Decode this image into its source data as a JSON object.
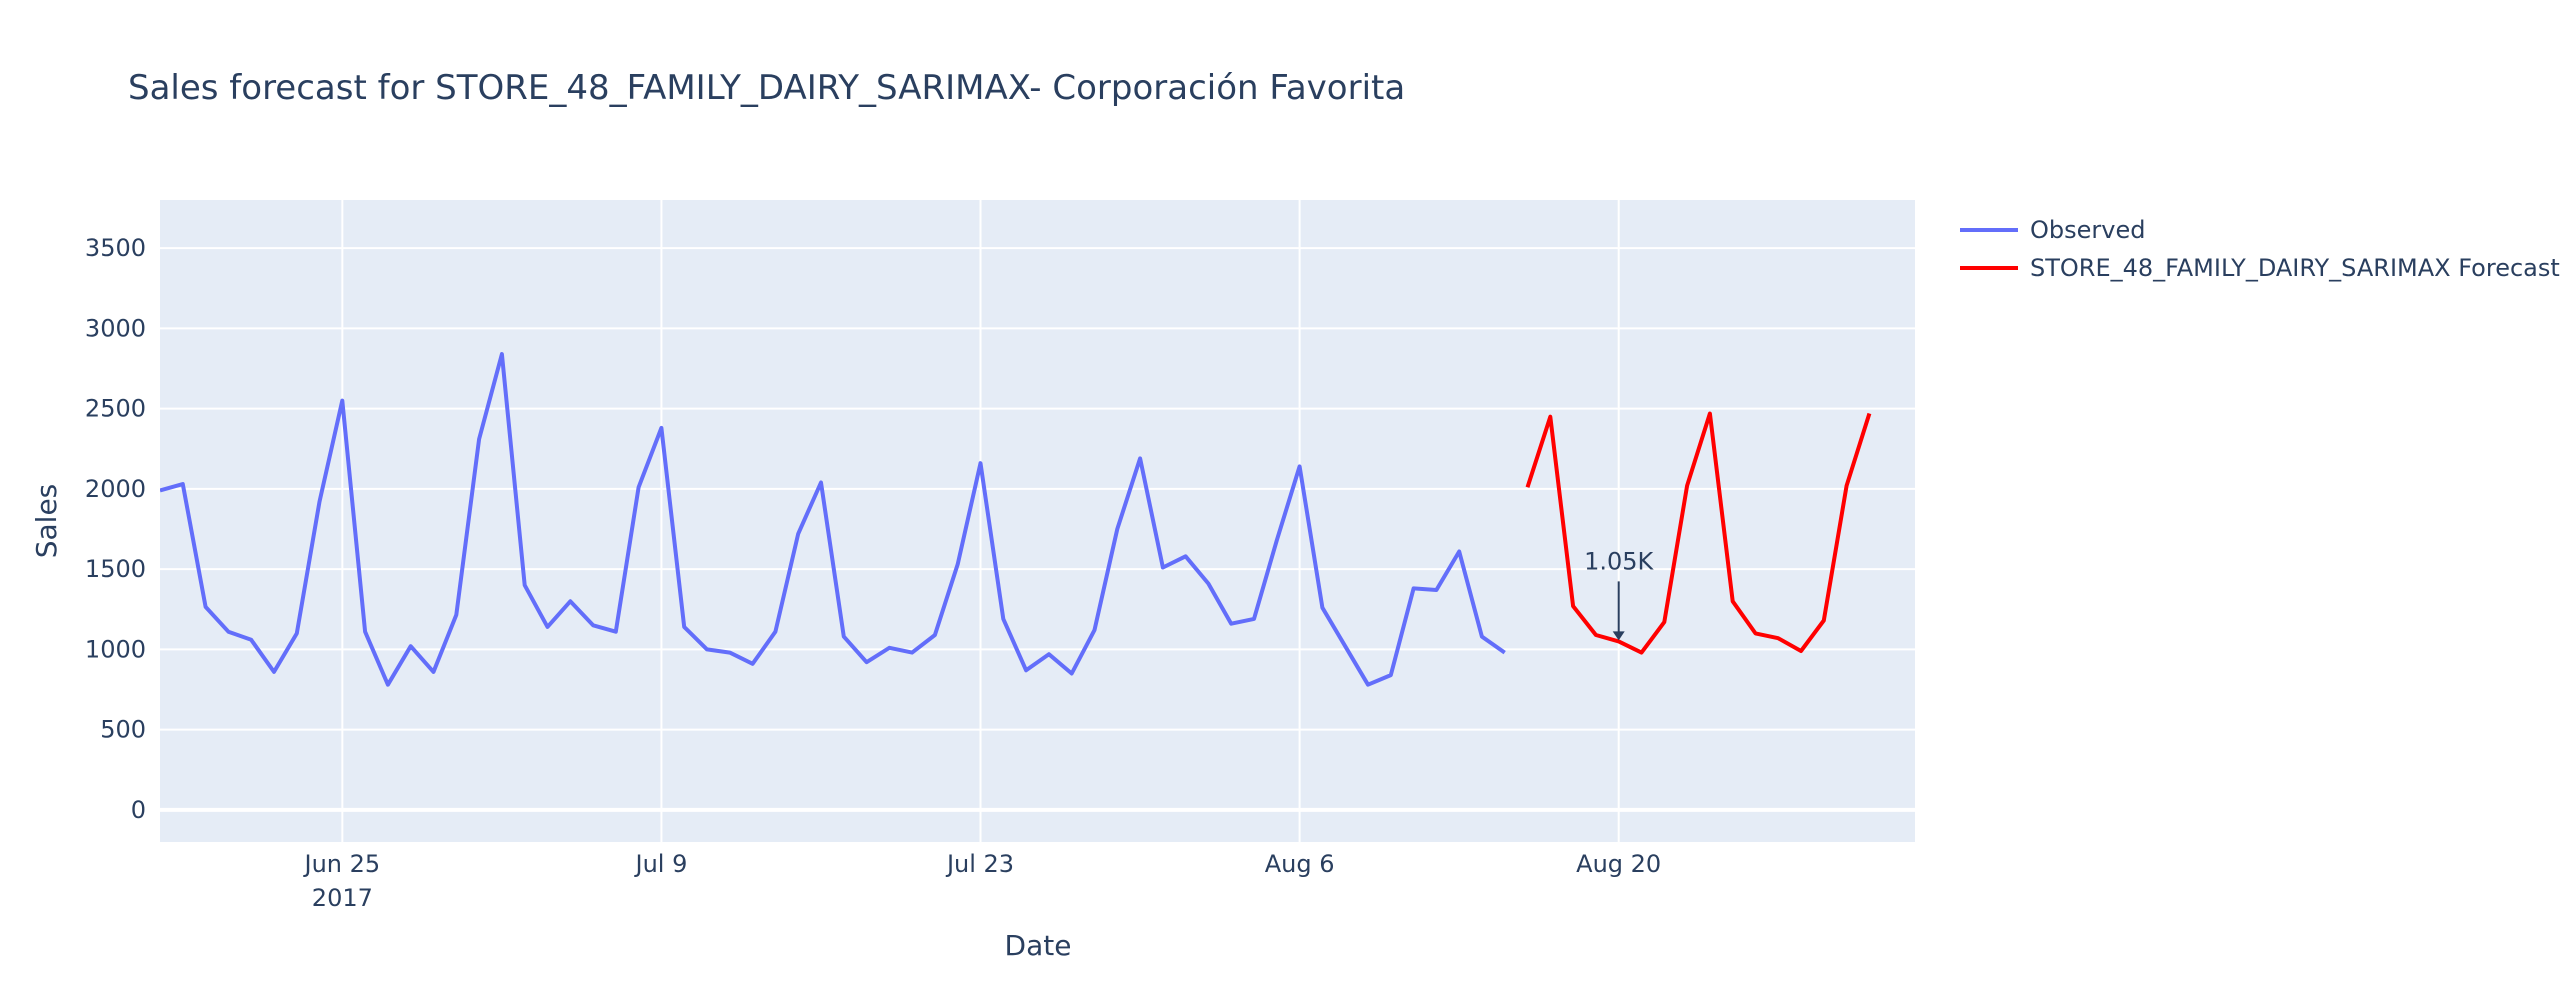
{
  "chart_data": {
    "type": "line",
    "title": "Sales forecast for STORE_48_FAMILY_DAIRY_SARIMAX- Corporación Favorita",
    "xlabel": "Date",
    "ylabel": "Sales",
    "x_range": [
      "2017-06-17",
      "2017-09-02"
    ],
    "ylim": [
      -200,
      3800
    ],
    "y_ticks": [
      0,
      500,
      1000,
      1500,
      2000,
      2500,
      3000,
      3500
    ],
    "x_ticks": [
      {
        "date": "2017-06-25",
        "label": "Jun 25",
        "sublabel": "2017"
      },
      {
        "date": "2017-07-09",
        "label": "Jul 9",
        "sublabel": ""
      },
      {
        "date": "2017-07-23",
        "label": "Jul 23",
        "sublabel": ""
      },
      {
        "date": "2017-08-06",
        "label": "Aug 6",
        "sublabel": ""
      },
      {
        "date": "2017-08-20",
        "label": "Aug 20",
        "sublabel": ""
      }
    ],
    "grid": true,
    "legend_position": "right",
    "colors": {
      "plot_bg": "#e5ecf6",
      "grid": "#ffffff",
      "text": "#2a3f5f"
    },
    "series": [
      {
        "name": "Observed",
        "color": "#636efa",
        "start_date": "2017-06-17",
        "values": [
          1990,
          2030,
          1265,
          1110,
          1060,
          860,
          1100,
          1920,
          2550,
          1110,
          780,
          1020,
          860,
          1215,
          2310,
          2840,
          1400,
          1140,
          1300,
          1150,
          1110,
          2010,
          2380,
          1140,
          1000,
          980,
          910,
          1110,
          1720,
          2040,
          1080,
          920,
          1010,
          980,
          1090,
          1530,
          2160,
          1190,
          870,
          970,
          850,
          1120,
          1750,
          2190,
          1510,
          1580,
          1410,
          1160,
          1190,
          1680,
          2140,
          1260,
          1020,
          780,
          840,
          1380,
          1370,
          1610,
          1080,
          980
        ]
      },
      {
        "name": "STORE_48_FAMILY_DAIRY_SARIMAX Forecast",
        "color": "#ff0000",
        "start_date": "2017-08-16",
        "values": [
          2010,
          2450,
          1270,
          1090,
          1050,
          980,
          1170,
          2020,
          2470,
          1300,
          1100,
          1070,
          990,
          1180,
          2020,
          2470
        ]
      }
    ],
    "annotations": [
      {
        "date": "2017-08-20",
        "value": 1050,
        "text": "1.05K"
      }
    ]
  }
}
